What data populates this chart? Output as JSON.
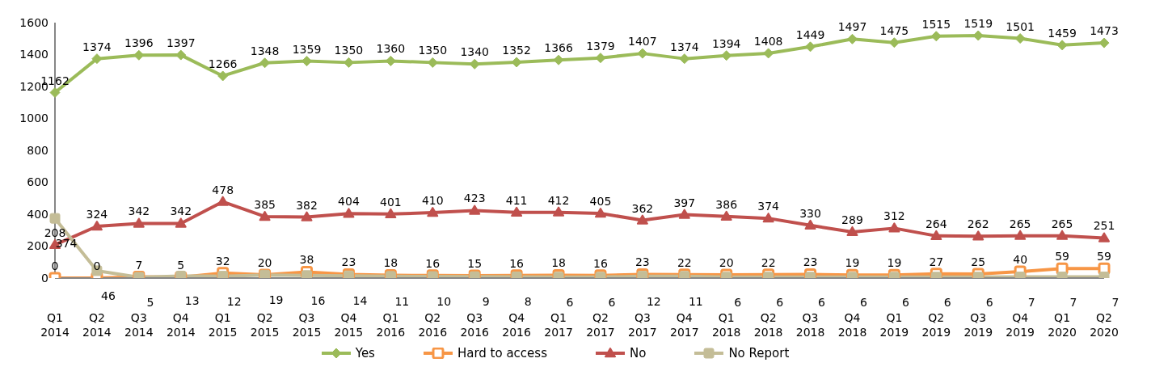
{
  "chart_data": {
    "type": "line",
    "categories": [
      "Q1 2014",
      "Q2 2014",
      "Q3 2014",
      "Q4 2014",
      "Q1 2015",
      "Q2 2015",
      "Q3 2015",
      "Q4 2015",
      "Q1 2016",
      "Q2 2016",
      "Q3 2016",
      "Q4 2016",
      "Q1 2017",
      "Q2 2017",
      "Q3 2017",
      "Q4 2017",
      "Q1 2018",
      "Q2 2018",
      "Q3 2018",
      "Q4 2018",
      "Q1 2019",
      "Q2 2019",
      "Q3 2019",
      "Q4 2019",
      "Q1 2020",
      "Q2 2020"
    ],
    "series": [
      {
        "name": "Yes",
        "color": "#9bbb59",
        "marker": "diamond",
        "values": [
          1162,
          1374,
          1396,
          1397,
          1266,
          1348,
          1359,
          1350,
          1360,
          1350,
          1340,
          1352,
          1366,
          1379,
          1407,
          1374,
          1394,
          1408,
          1449,
          1497,
          1475,
          1515,
          1519,
          1501,
          1459,
          1473
        ]
      },
      {
        "name": "Hard to access",
        "color": "#f79646",
        "marker": "square",
        "values": [
          0,
          0,
          7,
          5,
          32,
          20,
          38,
          23,
          18,
          16,
          15,
          16,
          18,
          16,
          23,
          22,
          20,
          22,
          23,
          19,
          19,
          27,
          25,
          40,
          59,
          59
        ]
      },
      {
        "name": "No",
        "color": "#c0504d",
        "marker": "triangle",
        "values": [
          208,
          324,
          342,
          342,
          478,
          385,
          382,
          404,
          401,
          410,
          423,
          411,
          412,
          405,
          362,
          397,
          386,
          374,
          330,
          289,
          312,
          264,
          262,
          265,
          265,
          251
        ]
      },
      {
        "name": "No Report",
        "color": "#c4bd97",
        "marker": "square",
        "values": [
          374,
          46,
          5,
          13,
          12,
          19,
          16,
          14,
          11,
          10,
          9,
          8,
          6,
          6,
          12,
          11,
          6,
          6,
          6,
          6,
          6,
          6,
          6,
          7,
          7,
          7
        ]
      }
    ],
    "ylim": [
      0,
      1600
    ],
    "yticks": [
      0,
      200,
      400,
      600,
      800,
      1000,
      1200,
      1400,
      1600
    ],
    "grid": false,
    "legend": "bottom",
    "data_labels": true
  }
}
